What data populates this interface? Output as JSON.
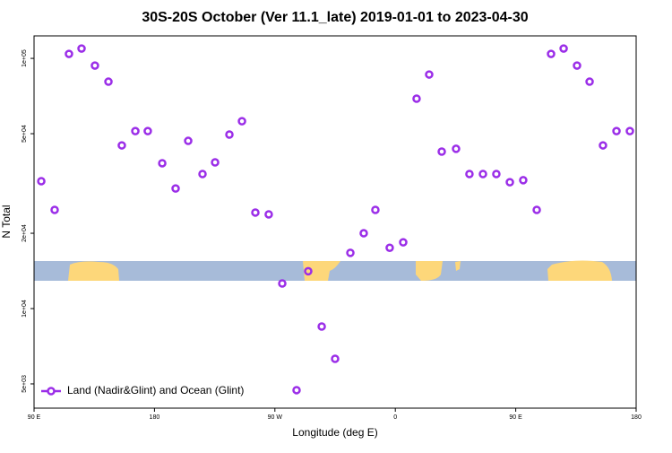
{
  "chart_data": {
    "type": "scatter",
    "title": "30S-20S October (Ver 11.1_late)   2019-01-01 to 2023-04-30",
    "x_label": "Longitude (deg E)",
    "y_label": "N Total",
    "yscale": "log",
    "legend": "bottom-left",
    "xlim": [
      90,
      540
    ],
    "ylim": [
      4000,
      123000
    ],
    "xticks": [
      {
        "value": 90,
        "label": "90 E"
      },
      180,
      {
        "value": 270,
        "label": "90 W"
      },
      {
        "value": 360,
        "label": "0"
      },
      {
        "value": 450,
        "label": "90 E"
      },
      {
        "value": 540,
        "label": "180"
      }
    ],
    "yticks": [
      {
        "value": 5000,
        "label": "5e+03"
      },
      {
        "value": 10000,
        "label": "1e+04"
      },
      {
        "value": 20000,
        "label": "2e+04"
      },
      {
        "value": 50000,
        "label": "5e+04"
      },
      {
        "value": 100000,
        "label": "1e+05"
      }
    ],
    "series": [
      {
        "name": "Land (Nadir&Glint) and Ocean (Glint)",
        "color": "#9b2ee8",
        "x": [
          95.4,
          105.4,
          116.1,
          125.5,
          135.5,
          145.6,
          155.6,
          165.7,
          175.0,
          185.8,
          195.8,
          205.2,
          215.9,
          225.3,
          236.0,
          245.4,
          255.4,
          265.4,
          275.5,
          286.2,
          294.9,
          305.0,
          315.0,
          326.4,
          336.4,
          345.1,
          355.8,
          365.9,
          375.9,
          385.3,
          394.7,
          405.4,
          415.4,
          425.5,
          435.5,
          445.6,
          455.6,
          465.7,
          476.4,
          485.8,
          495.8,
          505.2,
          515.2,
          525.3,
          535.3
        ],
        "values": [
          32300,
          24800,
          104200,
          109500,
          93600,
          80700,
          44900,
          51200,
          51200,
          38100,
          30200,
          46800,
          34500,
          38400,
          49600,
          56100,
          24200,
          23800,
          12600,
          4720,
          14100,
          8480,
          6300,
          16700,
          20000,
          24800,
          17500,
          18400,
          69000,
          86200,
          42400,
          43500,
          34500,
          34500,
          34500,
          32000,
          32600,
          24800,
          104200,
          109500,
          93600,
          80700,
          44900,
          51200,
          51200
        ]
      }
    ]
  }
}
